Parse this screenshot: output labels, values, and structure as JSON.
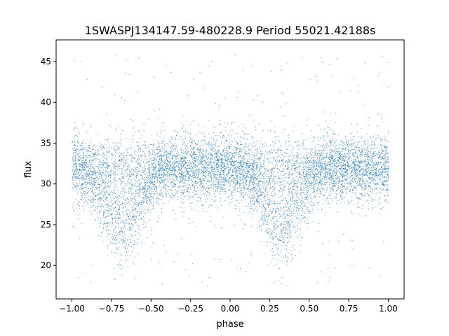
{
  "chart_data": {
    "type": "scatter",
    "title": "1SWASPJ134147.59-480228.9 Period 55021.42188s",
    "xlabel": "phase",
    "ylabel": "flux",
    "xlim": [
      -1.1,
      1.1
    ],
    "ylim": [
      15.9,
      47.66
    ],
    "xticks": [
      -1.0,
      -0.75,
      -0.5,
      -0.25,
      0.0,
      0.25,
      0.5,
      0.75,
      1.0
    ],
    "xtick_labels": [
      "−1.00",
      "−0.75",
      "−0.50",
      "−0.25",
      "0.00",
      "0.25",
      "0.50",
      "0.75",
      "1.00"
    ],
    "yticks": [
      20,
      25,
      30,
      35,
      40,
      45
    ],
    "ytick_labels": [
      "20",
      "25",
      "30",
      "35",
      "40",
      "45"
    ],
    "grid": false,
    "color": "#1f77b4",
    "model": {
      "description": "folded light curve: baseline flux with noise, eclipse dips",
      "x_range": [
        -1.0,
        1.0
      ],
      "n_points": 9000,
      "baseline": 32.0,
      "noise_sd": 2.0,
      "dip_centers": [
        -0.68,
        0.32
      ],
      "dip_width": 0.11,
      "dip_depth": 9.0,
      "dip_fraction": 0.55,
      "outlier_fraction": 0.03,
      "outlier_range": [
        17.5,
        46
      ]
    }
  }
}
